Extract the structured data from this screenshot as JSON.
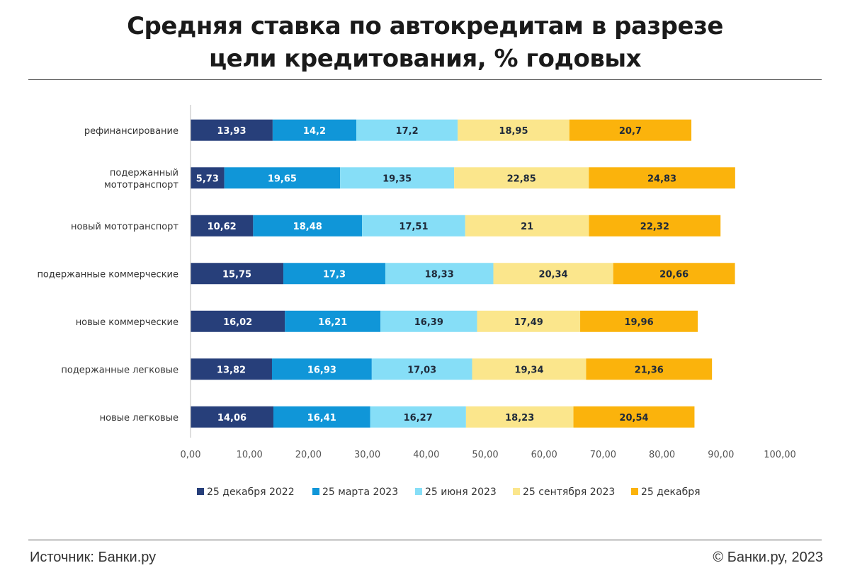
{
  "title": {
    "line1": "Средняя ставка по автокредитам в разрезе",
    "line2": "цели кредитования, % годовых"
  },
  "footer": {
    "source": "Источник: Банки.ру",
    "copyright": "© Банки.ру, 2023"
  },
  "chart_data": {
    "type": "bar",
    "orientation": "horizontal",
    "stacked": true,
    "categories": [
      [
        "рефинансирование"
      ],
      [
        "подержанный",
        "мототранспорт"
      ],
      [
        "новый мототранспорт"
      ],
      [
        "подержанные коммерческие"
      ],
      [
        "новые коммерческие"
      ],
      [
        "подержанные легковые"
      ],
      [
        "новые легковые"
      ]
    ],
    "series": [
      {
        "name": "25 декабря 2022",
        "color": "#273f7a",
        "text_color": "#ffffff",
        "values": [
          13.93,
          5.73,
          10.62,
          15.75,
          16.02,
          13.82,
          14.06
        ],
        "labels": [
          "13,93",
          "5,73",
          "10,62",
          "15,75",
          "16,02",
          "13,82",
          "14,06"
        ]
      },
      {
        "name": "25 марта 2023",
        "color": "#1096d8",
        "text_color": "#ffffff",
        "values": [
          14.2,
          19.65,
          18.48,
          17.3,
          16.21,
          16.93,
          16.41
        ],
        "labels": [
          "14,2",
          "19,65",
          "18,48",
          "17,3",
          "16,21",
          "16,93",
          "16,41"
        ]
      },
      {
        "name": "25 июня 2023",
        "color": "#86def7",
        "text_color": "#1f2a3a",
        "values": [
          17.2,
          19.35,
          17.51,
          18.33,
          16.39,
          17.03,
          16.27
        ],
        "labels": [
          "17,2",
          "19,35",
          "17,51",
          "18,33",
          "16,39",
          "17,03",
          "16,27"
        ]
      },
      {
        "name": "25 сентября 2023",
        "color": "#fbe68c",
        "text_color": "#1f2a3a",
        "values": [
          18.95,
          22.85,
          21,
          20.34,
          17.49,
          19.34,
          18.23
        ],
        "labels": [
          "18,95",
          "22,85",
          "21",
          "20,34",
          "17,49",
          "19,34",
          "18,23"
        ]
      },
      {
        "name": "25 декабря",
        "color": "#fbb30c",
        "text_color": "#1f2a3a",
        "values": [
          20.7,
          24.83,
          22.32,
          20.66,
          19.96,
          21.36,
          20.54
        ],
        "labels": [
          "20,7",
          "24,83",
          "22,32",
          "20,66",
          "19,96",
          "21,36",
          "20,54"
        ]
      }
    ],
    "xlim": [
      0,
      100
    ],
    "xticks": [
      0,
      10,
      20,
      30,
      40,
      50,
      60,
      70,
      80,
      90,
      100
    ],
    "xtick_labels": [
      "0,00",
      "10,00",
      "20,00",
      "30,00",
      "40,00",
      "50,00",
      "60,00",
      "70,00",
      "80,00",
      "90,00",
      "100,00"
    ],
    "grid": false,
    "legend_position": "bottom"
  }
}
